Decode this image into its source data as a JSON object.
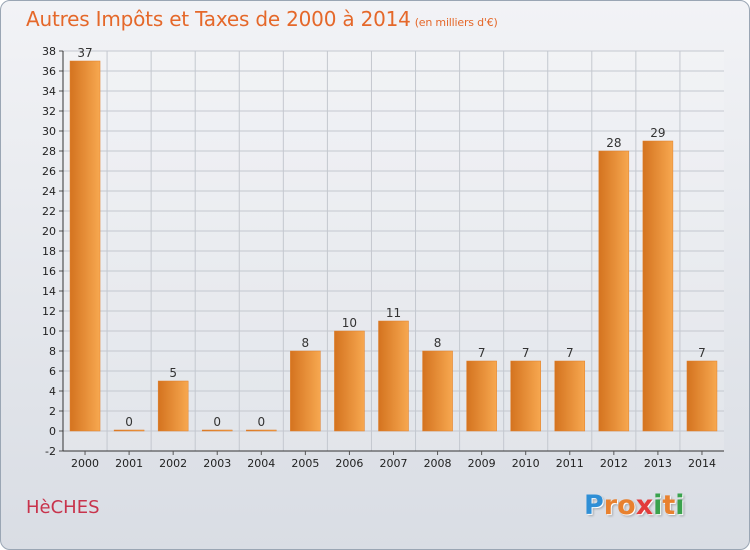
{
  "title": "Autres Impôts et Taxes de 2000 à 2014",
  "subtitle": "(en milliers d'€)",
  "commune": "HèCHES",
  "logo": {
    "letters": [
      "P",
      "r",
      "o",
      "x",
      "i",
      "t",
      "i"
    ],
    "colors": [
      "#2f8fd6",
      "#e8812f",
      "#e8812f",
      "#e23b3b",
      "#3aa24d",
      "#e8812f",
      "#3aa24d"
    ]
  },
  "colors": {
    "bar_dark": "#d4731f",
    "bar_light": "#f7a850",
    "title": "#e5682a",
    "commune": "#c8334c"
  },
  "chart_data": {
    "type": "bar",
    "categories": [
      "2000",
      "2001",
      "2002",
      "2003",
      "2004",
      "2005",
      "2006",
      "2007",
      "2008",
      "2009",
      "2010",
      "2011",
      "2012",
      "2013",
      "2014"
    ],
    "values": [
      37,
      0,
      5,
      0,
      0,
      8,
      10,
      11,
      8,
      7,
      7,
      7,
      28,
      29,
      7
    ],
    "data_labels": [
      "37",
      "0",
      "5",
      "0",
      "0",
      "8",
      "10",
      "11",
      "8",
      "7",
      "7",
      "7",
      "28",
      "29",
      "7"
    ],
    "title": "Autres Impôts et Taxes de 2000 à 2014",
    "ylim": [
      -2,
      38
    ],
    "yticks": [
      "-2",
      "0",
      "2",
      "4",
      "6",
      "8",
      "10",
      "12",
      "14",
      "16",
      "18",
      "20",
      "22",
      "24",
      "26",
      "28",
      "30",
      "32",
      "34",
      "36",
      "38"
    ],
    "grid": true,
    "legend": "none"
  }
}
